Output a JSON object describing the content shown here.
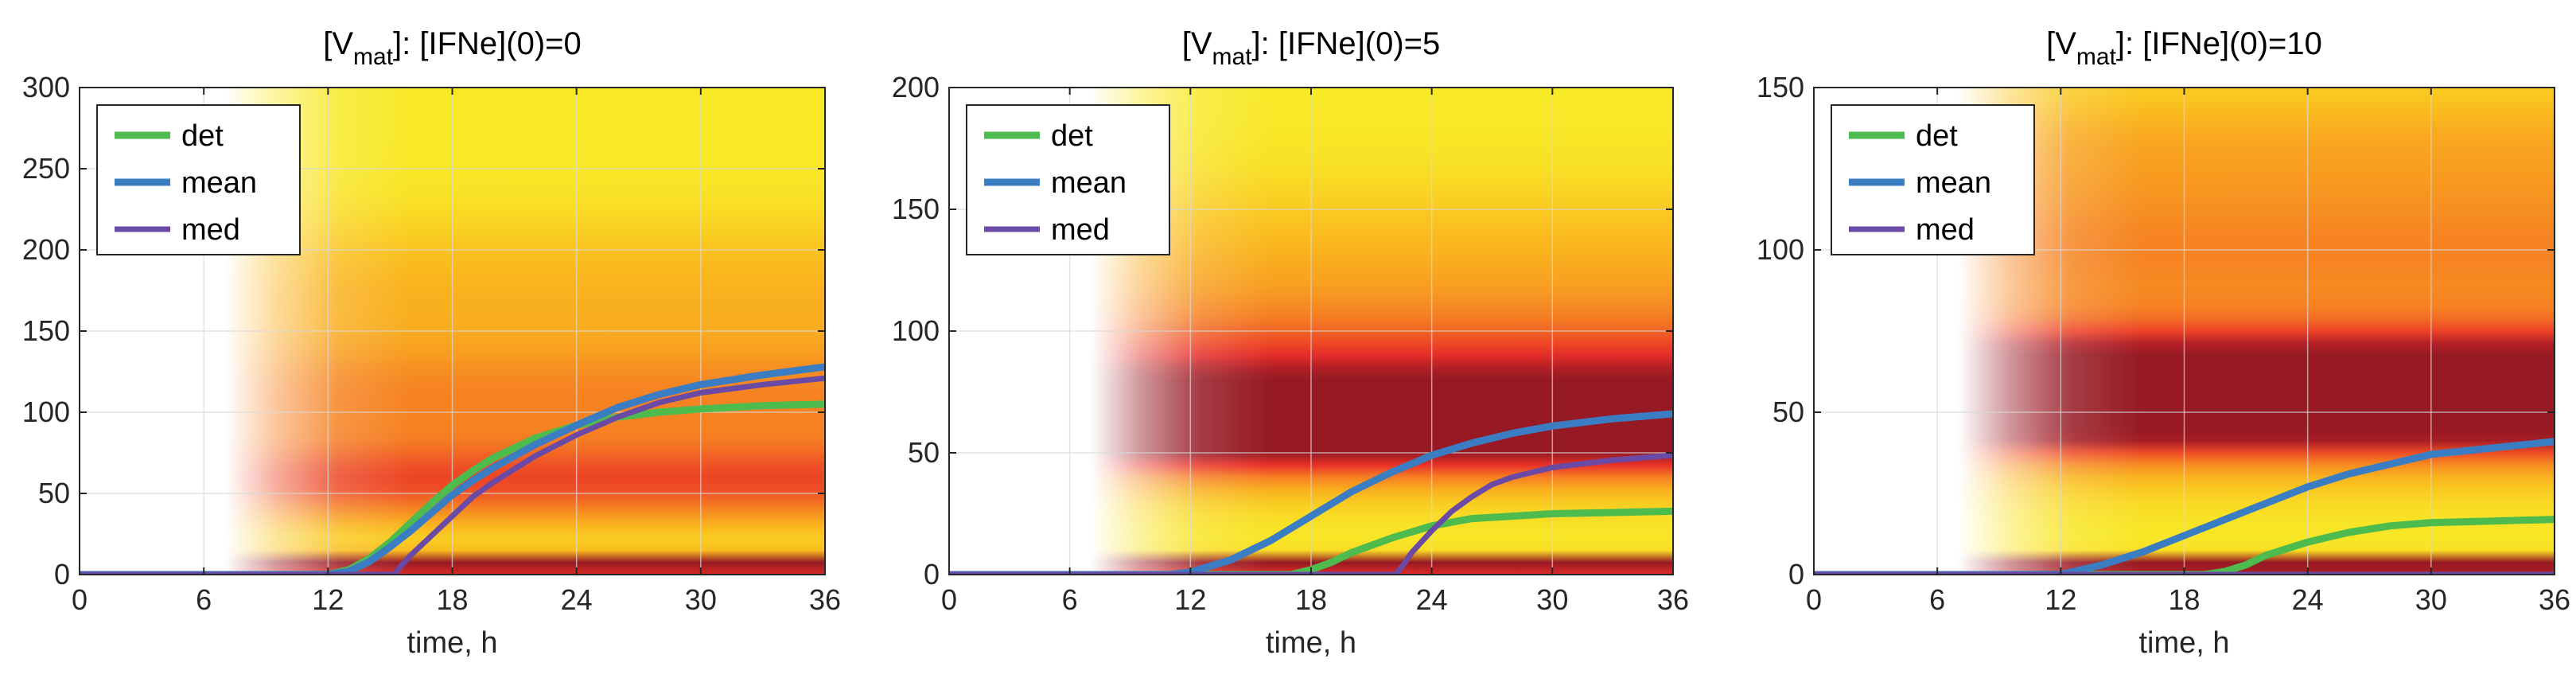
{
  "chart_data": [
    {
      "type": "heatmap",
      "title_main": "[V",
      "title_sub": "mat",
      "title_rest": "]:  [IFNe](0)=0",
      "xlabel": "time, h",
      "ylabel": "",
      "xlim": [
        0,
        36
      ],
      "ylim": [
        0,
        300
      ],
      "xticks": [
        "0",
        "6",
        "12",
        "18",
        "24",
        "30",
        "36"
      ],
      "yticks": [
        "0",
        "50",
        "100",
        "150",
        "200",
        "250",
        "300"
      ],
      "legend": {
        "position": "top-left",
        "entries": [
          "det",
          "mean",
          "med"
        ]
      },
      "grid": true,
      "density": {
        "onset": 10,
        "bands": [
          {
            "y": 5,
            "w": 7,
            "a": 0.95
          },
          {
            "y": 55,
            "w": 28,
            "a": 0.45
          },
          {
            "y": 110,
            "w": 40,
            "a": 0.35
          },
          {
            "y": 180,
            "w": 40,
            "a": 0.2
          }
        ]
      },
      "series": [
        {
          "name": "det",
          "color": "#4dbb4d",
          "x": [
            0,
            12,
            13,
            14,
            15,
            16,
            17,
            18,
            19,
            20,
            22,
            24,
            26,
            28,
            30,
            33,
            36
          ],
          "y": [
            0,
            0,
            3,
            10,
            20,
            32,
            44,
            55,
            64,
            72,
            84,
            92,
            97,
            100,
            102,
            104,
            105
          ]
        },
        {
          "name": "mean",
          "color": "#3b7dc3",
          "x": [
            0,
            12,
            13,
            14,
            15,
            16,
            17,
            18,
            19,
            20,
            22,
            24,
            26,
            28,
            30,
            33,
            36
          ],
          "y": [
            0,
            0,
            2,
            8,
            17,
            27,
            38,
            49,
            58,
            66,
            80,
            92,
            103,
            111,
            117,
            123,
            128
          ]
        },
        {
          "name": "med",
          "color": "#6a4aa5",
          "x": [
            0,
            15.2,
            15.5,
            16,
            16.5,
            17,
            18,
            19,
            20,
            21,
            22,
            24,
            26,
            28,
            30,
            33,
            36
          ],
          "y": [
            0,
            0,
            5,
            12,
            18,
            24,
            36,
            48,
            57,
            65,
            73,
            86,
            97,
            106,
            112,
            117,
            121
          ]
        }
      ]
    },
    {
      "type": "heatmap",
      "title_main": "[V",
      "title_sub": "mat",
      "title_rest": "]:  [IFNe](0)=5",
      "xlabel": "time, h",
      "ylabel": "",
      "xlim": [
        0,
        36
      ],
      "ylim": [
        0,
        200
      ],
      "xticks": [
        "0",
        "6",
        "12",
        "18",
        "24",
        "30",
        "36"
      ],
      "yticks": [
        "0",
        "50",
        "100",
        "150",
        "200"
      ],
      "legend": {
        "position": "top-left",
        "entries": [
          "det",
          "mean",
          "med"
        ]
      },
      "grid": true,
      "density": {
        "onset": 10,
        "bands": [
          {
            "y": 3,
            "w": 4,
            "a": 1.0
          },
          {
            "y": 60,
            "w": 22,
            "a": 0.85
          },
          {
            "y": 90,
            "w": 25,
            "a": 0.4
          },
          {
            "y": 130,
            "w": 30,
            "a": 0.2
          }
        ]
      },
      "series": [
        {
          "name": "det",
          "color": "#4dbb4d",
          "x": [
            0,
            17,
            18,
            19,
            20,
            22,
            24,
            26,
            28,
            30,
            33,
            36
          ],
          "y": [
            0,
            0,
            2,
            5,
            9,
            15,
            20,
            23,
            24,
            25,
            25.5,
            26
          ]
        },
        {
          "name": "mean",
          "color": "#3b7dc3",
          "x": [
            0,
            11,
            12,
            14,
            16,
            18,
            20,
            22,
            24,
            26,
            28,
            30,
            33,
            36
          ],
          "y": [
            0,
            0,
            1,
            6,
            14,
            24,
            34,
            42,
            49,
            54,
            58,
            61,
            64,
            66
          ]
        },
        {
          "name": "med",
          "color": "#6a4aa5",
          "x": [
            0,
            22.2,
            22.5,
            23,
            24,
            25,
            26,
            27,
            28,
            30,
            33,
            36
          ],
          "y": [
            0,
            0,
            3,
            9,
            18,
            26,
            32,
            37,
            40,
            44,
            47,
            49
          ]
        }
      ]
    },
    {
      "type": "heatmap",
      "title_main": "[V",
      "title_sub": "mat",
      "title_rest": "]:  [IFNe](0)=10",
      "xlabel": "time, h",
      "ylabel": "",
      "xlim": [
        0,
        36
      ],
      "ylim": [
        0,
        150
      ],
      "xticks": [
        "0",
        "6",
        "12",
        "18",
        "24",
        "30",
        "36"
      ],
      "yticks": [
        "0",
        "50",
        "100",
        "150"
      ],
      "legend": {
        "position": "top-left",
        "entries": [
          "det",
          "mean",
          "med"
        ]
      },
      "grid": true,
      "density": {
        "onset": 10,
        "bands": [
          {
            "y": 2,
            "w": 3,
            "a": 1.0
          },
          {
            "y": 55,
            "w": 20,
            "a": 1.05
          },
          {
            "y": 100,
            "w": 25,
            "a": 0.35
          },
          {
            "y": 135,
            "w": 20,
            "a": 0.2
          }
        ]
      },
      "series": [
        {
          "name": "det",
          "color": "#4dbb4d",
          "x": [
            0,
            19,
            20,
            21,
            22,
            24,
            26,
            28,
            30,
            33,
            36
          ],
          "y": [
            0,
            0,
            1,
            3,
            6,
            10,
            13,
            15,
            16,
            16.5,
            17
          ]
        },
        {
          "name": "mean",
          "color": "#3b7dc3",
          "x": [
            0,
            12,
            14,
            16,
            18,
            20,
            22,
            24,
            26,
            28,
            30,
            33,
            36
          ],
          "y": [
            0,
            0,
            3,
            7,
            12,
            17,
            22,
            27,
            31,
            34,
            37,
            39,
            41
          ]
        },
        {
          "name": "med",
          "color": "#6a4aa5",
          "x": [
            0,
            36
          ],
          "y": [
            0,
            0
          ]
        }
      ]
    }
  ]
}
